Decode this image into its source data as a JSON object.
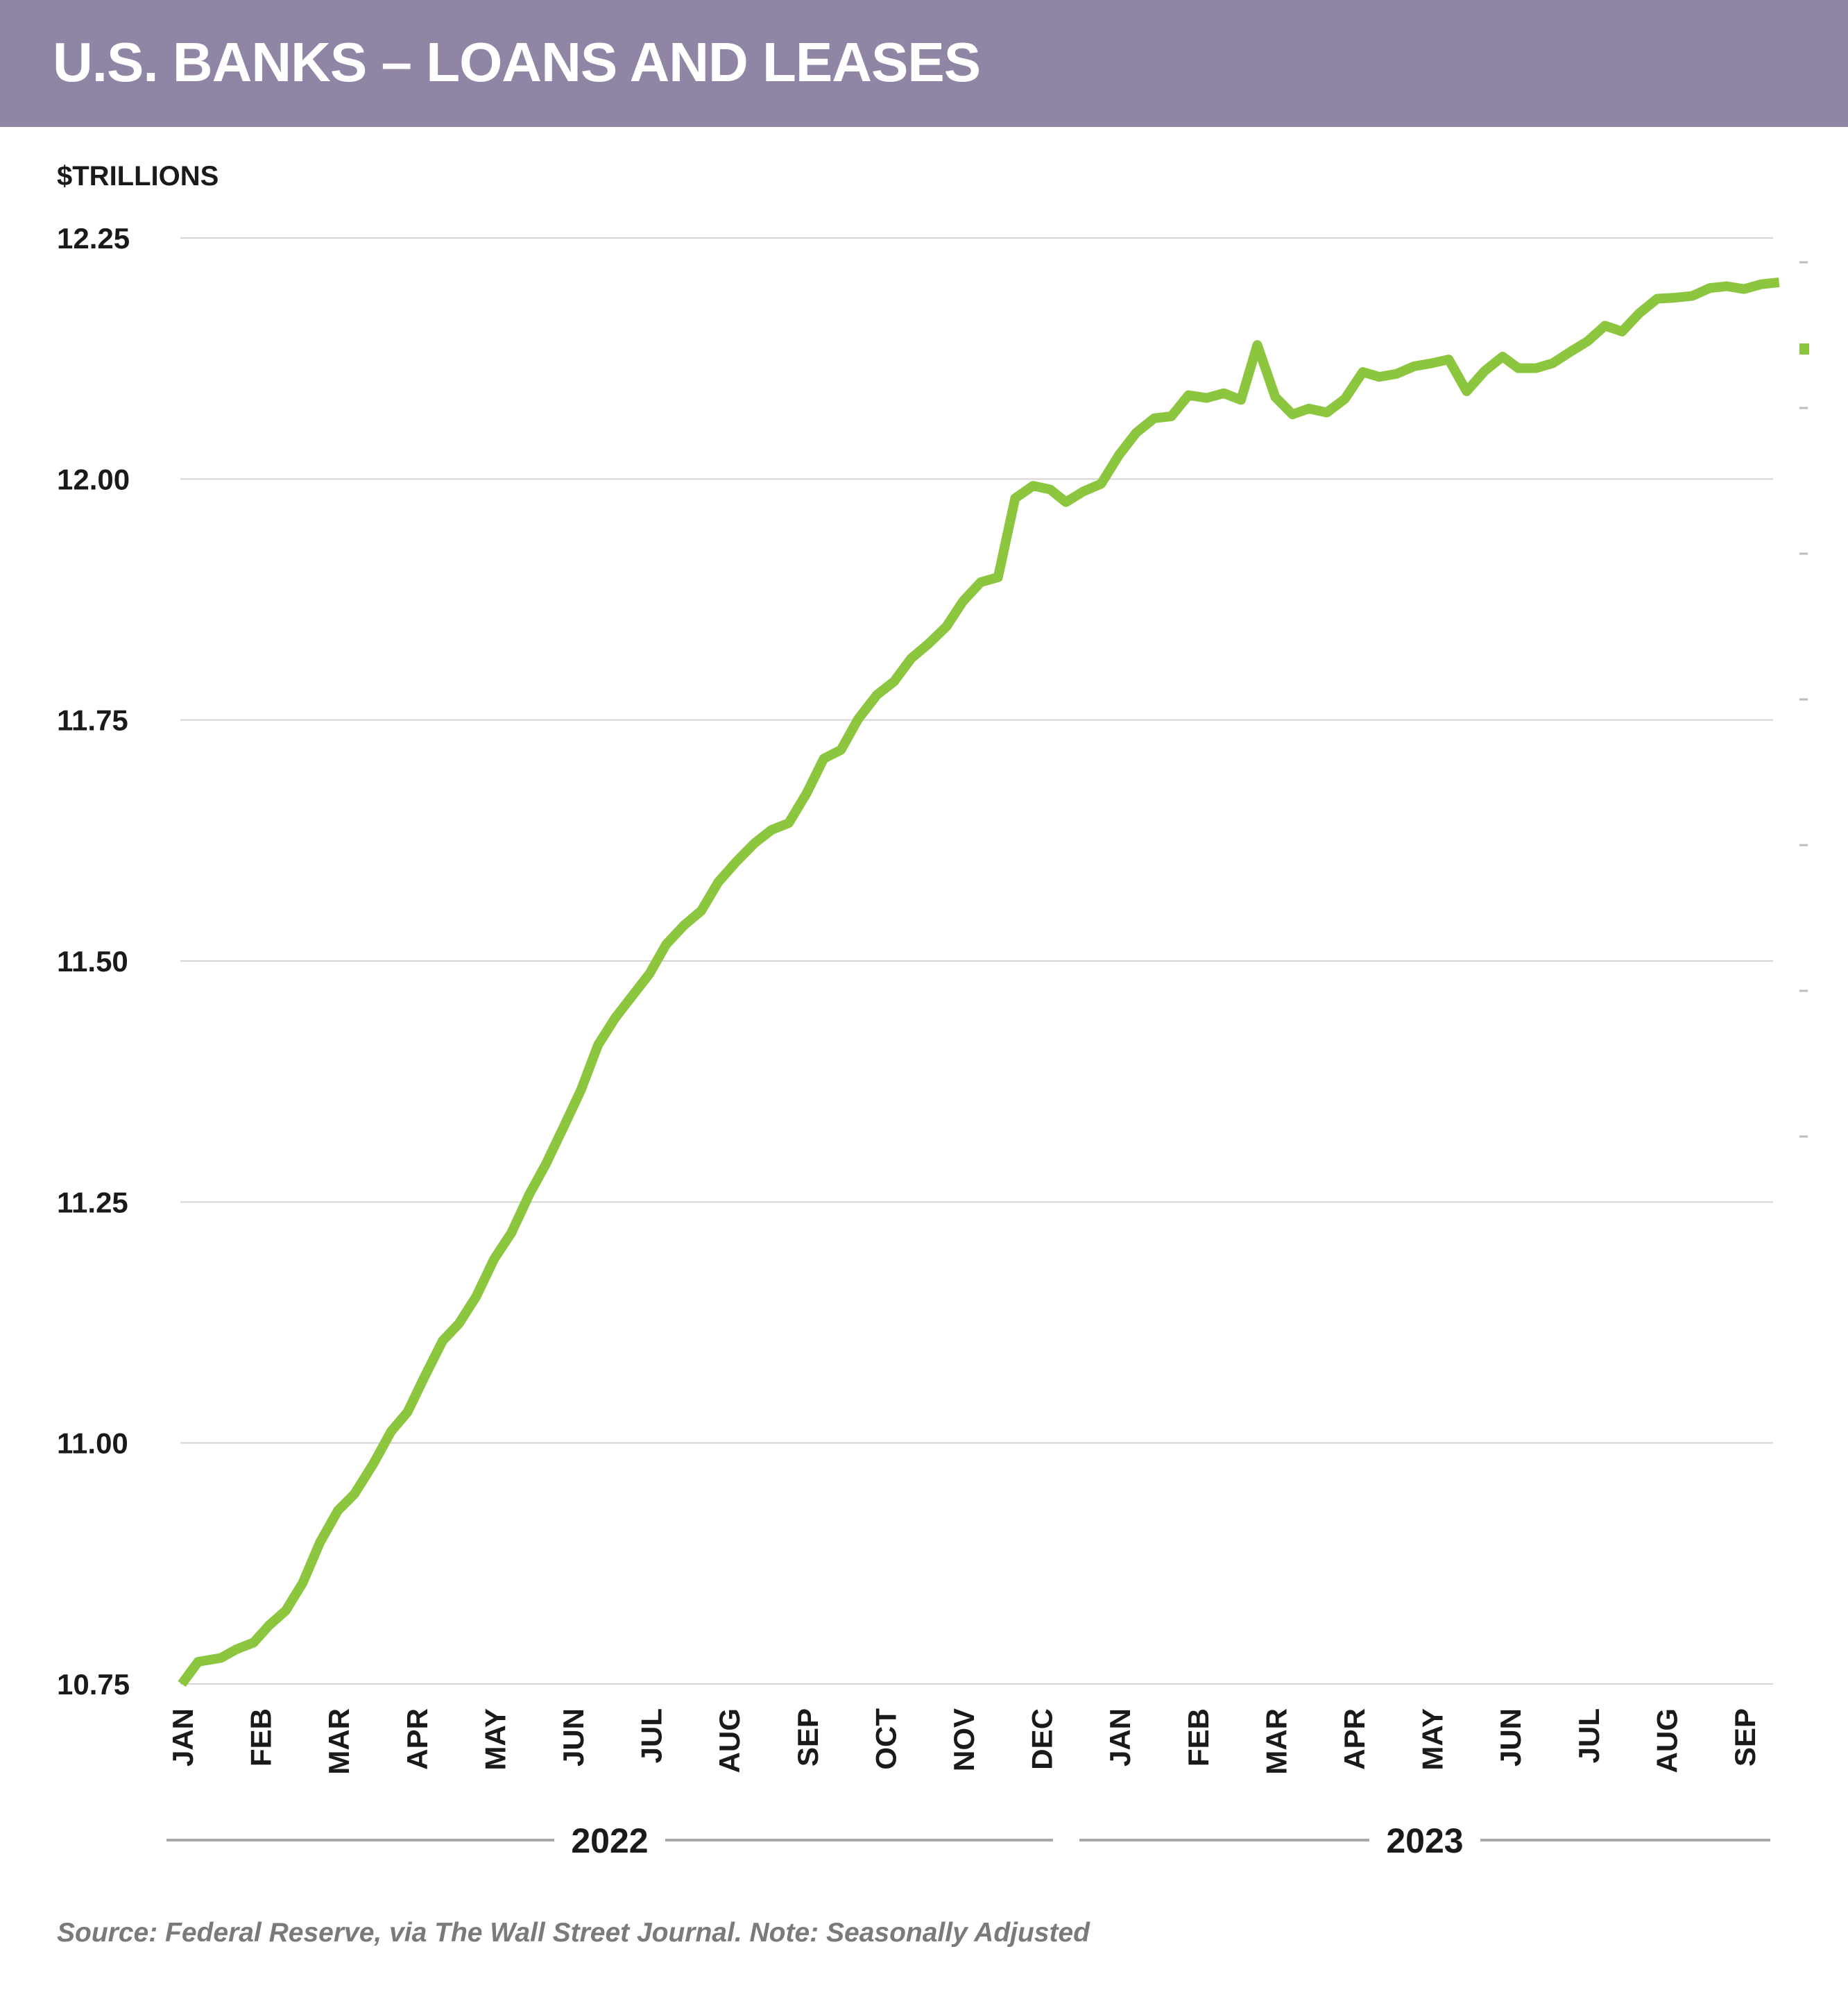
{
  "header": {
    "title": "U.S. BANKS – LOANS AND LEASES"
  },
  "colors": {
    "header_bg": "#9085a5",
    "line": "#8cc63f",
    "grid": "#d4d4d4",
    "text": "#1a1a1a",
    "source_text": "#7a7a7a"
  },
  "footer": {
    "source": "Source: Federal Reserve, via The Wall Street Journal. Note: Seasonally Adjusted"
  },
  "chart_data": {
    "type": "line",
    "ylabel": "$TRILLIONS",
    "ylim": [
      10.75,
      12.25
    ],
    "yticks": [
      "12.25",
      "12.00",
      "11.75",
      "11.50",
      "11.25",
      "11.00",
      "10.75"
    ],
    "ytick_values": [
      12.25,
      12.0,
      11.75,
      11.5,
      11.25,
      11.0,
      10.75
    ],
    "grid": true,
    "legend": "none",
    "month_labels": [
      "JAN",
      "FEB",
      "MAR",
      "APR",
      "MAY",
      "JUN",
      "JUL",
      "AUG",
      "SEP",
      "OCT",
      "NOV",
      "DEC",
      "JAN",
      "FEB",
      "MAR",
      "APR",
      "MAY",
      "JUN",
      "JUL",
      "AUG",
      "SEP"
    ],
    "years": [
      {
        "label": "2022",
        "start_month": 0,
        "end_month": 11
      },
      {
        "label": "2023",
        "start_month": 12,
        "end_month": 20
      }
    ],
    "series": [
      {
        "color": "#8cc63f",
        "x_months": [
          0,
          0.21,
          0.5,
          0.7,
          0.92,
          1.12,
          1.33,
          1.55,
          1.77,
          2.0,
          2.21,
          2.45,
          2.68,
          2.89,
          3.11,
          3.34,
          3.55,
          3.77,
          4.0,
          4.22,
          4.45,
          4.66,
          4.89,
          5.11,
          5.33,
          5.55,
          5.77,
          5.99,
          6.2,
          6.43,
          6.65,
          6.87,
          7.1,
          7.33,
          7.55,
          7.77,
          8.0,
          8.22,
          8.44,
          8.66,
          8.9,
          9.12,
          9.34,
          9.56,
          9.79,
          10.0,
          10.23,
          10.45,
          10.67,
          10.9,
          11.12,
          11.32,
          11.54,
          11.77,
          12.0,
          12.22,
          12.45,
          12.67,
          12.89,
          13.12,
          13.34,
          13.56,
          13.77,
          14.0,
          14.22,
          14.43,
          14.66,
          14.89,
          15.12,
          15.33,
          15.55,
          15.78,
          16.0,
          16.22,
          16.45,
          16.68,
          16.91,
          17.11,
          17.34,
          17.55,
          17.78,
          18.0,
          18.22,
          18.44,
          18.66,
          18.89,
          19.11,
          19.34,
          19.56,
          19.78,
          20.0,
          20.22,
          20.45
        ],
        "values": [
          10.75,
          10.773,
          10.777,
          10.786,
          10.793,
          10.811,
          10.826,
          10.855,
          10.897,
          10.93,
          10.947,
          10.978,
          11.012,
          11.032,
          11.069,
          11.106,
          11.124,
          11.152,
          11.191,
          11.218,
          11.258,
          11.289,
          11.328,
          11.366,
          11.413,
          11.441,
          11.464,
          11.487,
          11.517,
          11.537,
          11.552,
          11.582,
          11.603,
          11.622,
          11.636,
          11.643,
          11.674,
          11.71,
          11.719,
          11.751,
          11.776,
          11.79,
          11.814,
          11.829,
          11.847,
          11.873,
          11.893,
          11.898,
          11.98,
          11.993,
          11.989,
          11.976,
          11.987,
          11.995,
          12.025,
          12.048,
          12.063,
          12.065,
          12.087,
          12.084,
          12.089,
          12.082,
          12.139,
          12.085,
          12.067,
          12.073,
          12.069,
          12.083,
          12.111,
          12.106,
          12.109,
          12.117,
          12.12,
          12.124,
          12.091,
          12.112,
          12.127,
          12.115,
          12.115,
          12.12,
          12.132,
          12.143,
          12.159,
          12.153,
          12.172,
          12.187,
          12.188,
          12.19,
          12.198,
          12.2,
          12.197,
          12.202,
          12.204
        ]
      }
    ]
  }
}
